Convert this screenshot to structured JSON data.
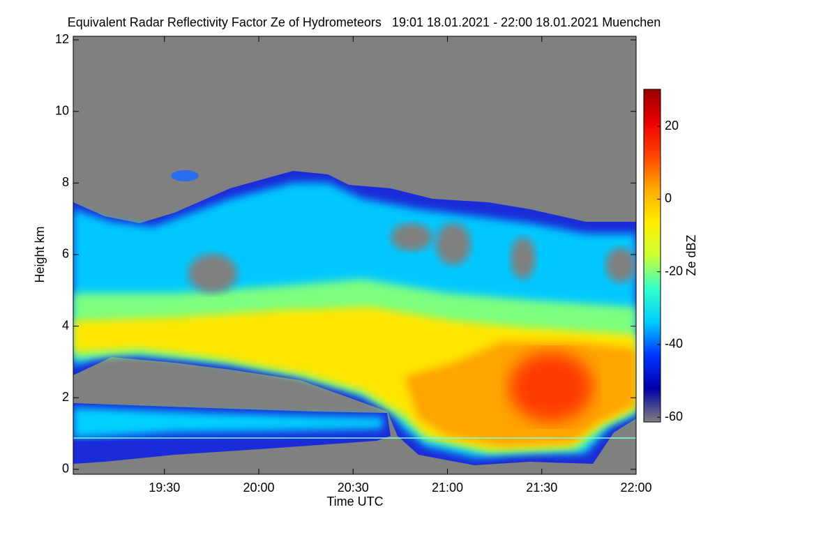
{
  "chart_data": {
    "type": "time-height",
    "title": "Equivalent Radar Reflectivity Factor Ze of Hydrometeors   19:01 18.01.2021 - 22:00 18.01.2021 Muenchen",
    "xlabel": "Time UTC",
    "ylabel": "Height km",
    "xlim": [
      1141,
      1320
    ],
    "xticks": [
      {
        "value": 1170,
        "label": "19:30"
      },
      {
        "value": 1200,
        "label": "20:00"
      },
      {
        "value": 1230,
        "label": "20:30"
      },
      {
        "value": 1260,
        "label": "21:00"
      },
      {
        "value": 1290,
        "label": "21:30"
      },
      {
        "value": 1320,
        "label": "22:00"
      }
    ],
    "ylim": [
      -0.14,
      12.1
    ],
    "yticks": [
      0,
      2,
      4,
      6,
      8,
      10,
      12
    ],
    "colorbar": {
      "label": "Ze dBZ",
      "lim": [
        -61.3,
        30.2
      ],
      "ticks": [
        -60,
        -40,
        -20,
        0,
        20
      ],
      "colormap": [
        "#808080",
        "#0000a8",
        "#0033ff",
        "#00ccff",
        "#33ffcc",
        "#ccff33",
        "#ffee00",
        "#ffaa00",
        "#ff4400",
        "#ee0000",
        "#990000"
      ]
    }
  }
}
